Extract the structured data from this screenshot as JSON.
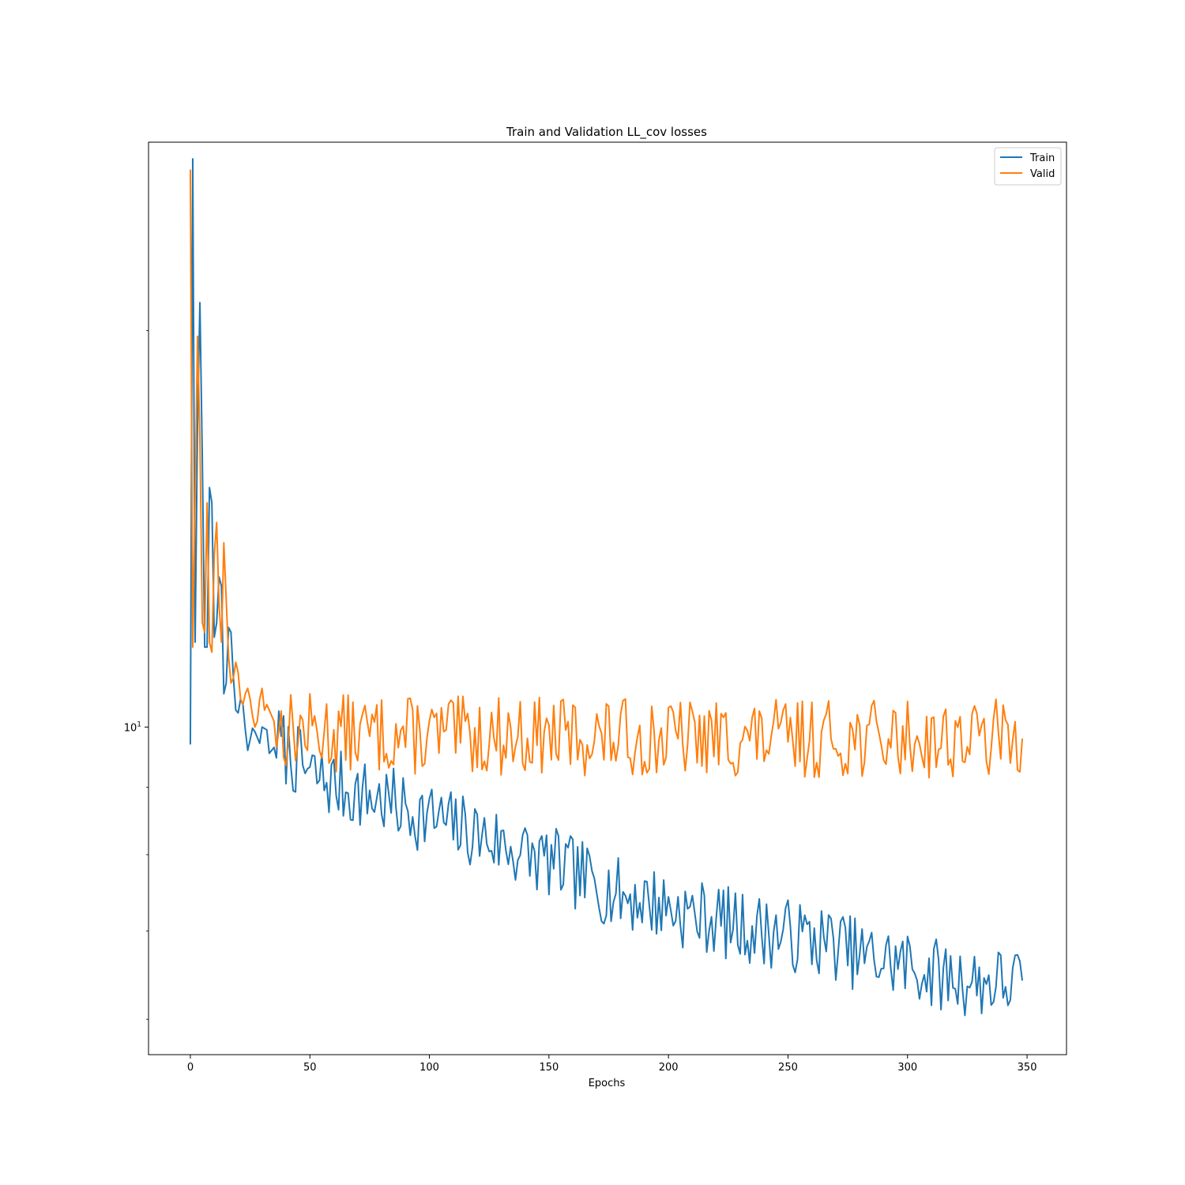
{
  "chart_data": {
    "type": "line",
    "title": "Train and Validation  LL_cov losses",
    "xlabel": "Epochs",
    "ylabel": "",
    "xlim": [
      -17.5,
      366.5
    ],
    "ylim": [
      5.64,
      27.8
    ],
    "yscale": "log",
    "grid": false,
    "legend_position": "top-right",
    "xticks": [
      0,
      50,
      100,
      150,
      200,
      250,
      300,
      350
    ],
    "xtick_labels": [
      "0",
      "50",
      "100",
      "150",
      "200",
      "250",
      "300",
      "350"
    ],
    "yticks": [
      10
    ],
    "ytick_labels": [
      "10^1"
    ],
    "yminor_ticks": [
      6,
      7,
      8,
      9,
      20
    ],
    "series": [
      {
        "name": "Train",
        "color": "#1f77b4",
        "keypoints": [
          [
            0,
            9.7
          ],
          [
            1,
            27.0
          ],
          [
            2,
            11.6
          ],
          [
            3,
            17.0
          ],
          [
            4,
            21.0
          ],
          [
            5,
            16.0
          ],
          [
            6,
            11.5
          ],
          [
            7,
            11.5
          ],
          [
            8,
            15.2
          ],
          [
            9,
            14.8
          ],
          [
            10,
            11.7
          ],
          [
            11,
            12.0
          ],
          [
            12,
            13.0
          ],
          [
            13,
            12.8
          ],
          [
            14,
            10.6
          ],
          [
            15,
            10.8
          ],
          [
            16,
            11.9
          ],
          [
            17,
            11.8
          ],
          [
            18,
            10.9
          ],
          [
            19,
            10.3
          ],
          [
            20,
            10.25
          ],
          [
            21,
            10.5
          ],
          [
            22,
            10.4
          ],
          [
            23,
            9.95
          ],
          [
            24,
            9.6
          ],
          [
            25,
            9.78
          ],
          [
            26,
            9.98
          ],
          [
            27,
            9.92
          ],
          [
            28,
            9.82
          ],
          [
            29,
            9.72
          ],
          [
            30,
            10.0
          ],
          [
            32,
            9.95
          ],
          [
            33,
            9.55
          ],
          [
            34,
            9.6
          ],
          [
            35,
            9.65
          ],
          [
            36,
            9.8
          ],
          [
            40,
            9.6
          ],
          [
            50,
            9.2
          ],
          [
            60,
            9.05
          ],
          [
            70,
            8.9
          ],
          [
            80,
            8.8
          ],
          [
            90,
            8.65
          ],
          [
            100,
            8.55
          ],
          [
            110,
            8.4
          ],
          [
            120,
            8.3
          ],
          [
            130,
            8.15
          ],
          [
            140,
            8.0
          ],
          [
            150,
            7.9
          ],
          [
            160,
            7.75
          ],
          [
            170,
            7.6
          ],
          [
            180,
            7.45
          ],
          [
            190,
            7.4
          ],
          [
            200,
            7.3
          ],
          [
            210,
            7.2
          ],
          [
            220,
            7.15
          ],
          [
            230,
            7.05
          ],
          [
            240,
            7.0
          ],
          [
            250,
            6.95
          ],
          [
            260,
            6.9
          ],
          [
            270,
            6.85
          ],
          [
            280,
            6.7
          ],
          [
            290,
            6.65
          ],
          [
            300,
            6.6
          ],
          [
            310,
            6.5
          ],
          [
            320,
            6.45
          ],
          [
            330,
            6.4
          ],
          [
            340,
            6.4
          ],
          [
            348,
            6.42
          ]
        ],
        "noise": 0.028,
        "noise_start": 36,
        "seed": 7
      },
      {
        "name": "Valid",
        "color": "#ff7f0e",
        "keypoints": [
          [
            0,
            26.5
          ],
          [
            1,
            11.5
          ],
          [
            2,
            15.0
          ],
          [
            3,
            19.8
          ],
          [
            4,
            16.5
          ],
          [
            5,
            12.0
          ],
          [
            6,
            11.8
          ],
          [
            7,
            14.8
          ],
          [
            8,
            11.6
          ],
          [
            9,
            11.4
          ],
          [
            10,
            13.5
          ],
          [
            11,
            14.3
          ],
          [
            12,
            12.4
          ],
          [
            13,
            11.6
          ],
          [
            14,
            13.8
          ],
          [
            15,
            12.5
          ],
          [
            16,
            11.3
          ],
          [
            17,
            10.8
          ],
          [
            18,
            10.9
          ],
          [
            19,
            11.2
          ],
          [
            20,
            11.0
          ],
          [
            21,
            10.5
          ],
          [
            22,
            10.4
          ],
          [
            23,
            10.6
          ],
          [
            24,
            10.7
          ],
          [
            25,
            10.5
          ],
          [
            26,
            10.2
          ],
          [
            27,
            10.0
          ],
          [
            28,
            10.1
          ],
          [
            29,
            10.5
          ],
          [
            30,
            10.7
          ],
          [
            31,
            10.3
          ],
          [
            32,
            10.4
          ],
          [
            33,
            10.3
          ],
          [
            34,
            10.2
          ],
          [
            35,
            10.1
          ],
          [
            36,
            10.0
          ],
          [
            40,
            9.95
          ],
          [
            60,
            9.9
          ],
          [
            100,
            9.85
          ],
          [
            150,
            9.85
          ],
          [
            200,
            9.8
          ],
          [
            250,
            9.8
          ],
          [
            300,
            9.8
          ],
          [
            348,
            9.8
          ]
        ],
        "noise": 0.03,
        "noise_start": 36,
        "seed": 13
      }
    ]
  }
}
